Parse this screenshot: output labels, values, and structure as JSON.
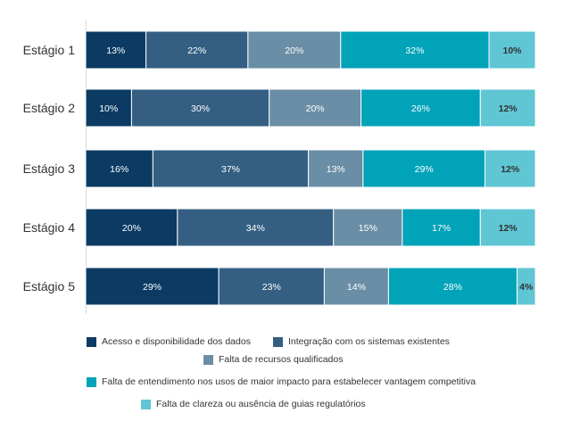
{
  "chart_data": {
    "type": "bar",
    "orientation": "horizontal",
    "stacked": true,
    "percent_stacked": true,
    "categories": [
      "Estágio 1",
      "Estágio 2",
      "Estágio 3",
      "Estágio 4",
      "Estágio 5"
    ],
    "series": [
      {
        "name": "Acesso e disponibilidade dos dados",
        "color": "#0b3b63",
        "label_color": "#ffffff",
        "values": [
          13,
          10,
          16,
          20,
          29
        ]
      },
      {
        "name": "Integração com os sistemas existentes",
        "color": "#345f82",
        "label_color": "#ffffff",
        "values": [
          22,
          30,
          37,
          34,
          23
        ]
      },
      {
        "name": "Falta de recursos qualificados",
        "color": "#6a8ea5",
        "label_color": "#ffffff",
        "values": [
          20,
          20,
          13,
          15,
          14
        ]
      },
      {
        "name": "Falta de entendimento nos usos de maior impacto para estabelecer vantagem competitiva",
        "color": "#00a3b8",
        "label_color": "#ffffff",
        "values": [
          32,
          26,
          29,
          17,
          28
        ]
      },
      {
        "name": "Falta de clareza ou ausência de guias regulatórios",
        "color": "#5fc6d4",
        "label_color": "#333333",
        "values": [
          10,
          12,
          12,
          12,
          4
        ]
      }
    ],
    "value_suffix": "%",
    "data_labels": true,
    "grid": false,
    "legend_position": "bottom",
    "title": "",
    "xlabel": "",
    "ylabel": ""
  }
}
